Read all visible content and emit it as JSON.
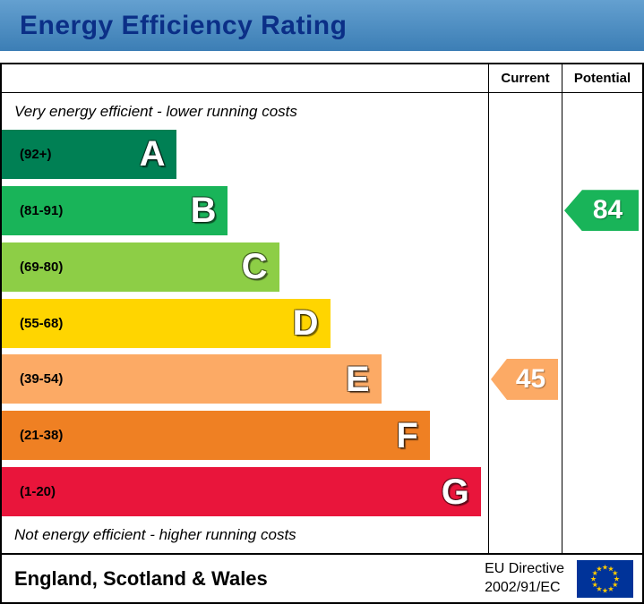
{
  "header": {
    "title": "Energy Efficiency Rating"
  },
  "columns": {
    "current_label": "Current",
    "potential_label": "Potential"
  },
  "notes": {
    "top": "Very energy efficient - lower running costs",
    "bottom": "Not energy efficient - higher running costs"
  },
  "footer": {
    "region": "England, Scotland & Wales",
    "directive_line1": "EU Directive",
    "directive_line2": "2002/91/EC",
    "flag_icon": "eu-flag"
  },
  "colors": {
    "header_bg_top": "#64a0d0",
    "header_bg_bottom": "#3c7eb5",
    "header_text": "#0b2f87",
    "flag_blue": "#003399",
    "flag_star": "#ffcc00"
  },
  "chart_data": {
    "type": "bar",
    "title": "Energy Efficiency Rating",
    "bands": [
      {
        "letter": "A",
        "range": "92+",
        "label": "(92+)",
        "color": "#008054",
        "width_pct": 36
      },
      {
        "letter": "B",
        "range": "81-91",
        "label": "(81-91)",
        "color": "#19b459",
        "width_pct": 46.5
      },
      {
        "letter": "C",
        "range": "69-80",
        "label": "(69-80)",
        "color": "#8dce46",
        "width_pct": 57
      },
      {
        "letter": "D",
        "range": "55-68",
        "label": "(55-68)",
        "color": "#ffd500",
        "width_pct": 67.5
      },
      {
        "letter": "E",
        "range": "39-54",
        "label": "(39-54)",
        "color": "#fcaa65",
        "width_pct": 78
      },
      {
        "letter": "F",
        "range": "21-38",
        "label": "(21-38)",
        "color": "#ef8023",
        "width_pct": 88
      },
      {
        "letter": "G",
        "range": "1-20",
        "label": "(1-20)",
        "color": "#e9153b",
        "width_pct": 98.5
      }
    ],
    "current": {
      "label": "Current",
      "value": 45,
      "band": "E"
    },
    "potential": {
      "label": "Potential",
      "value": 84,
      "band": "B"
    }
  }
}
